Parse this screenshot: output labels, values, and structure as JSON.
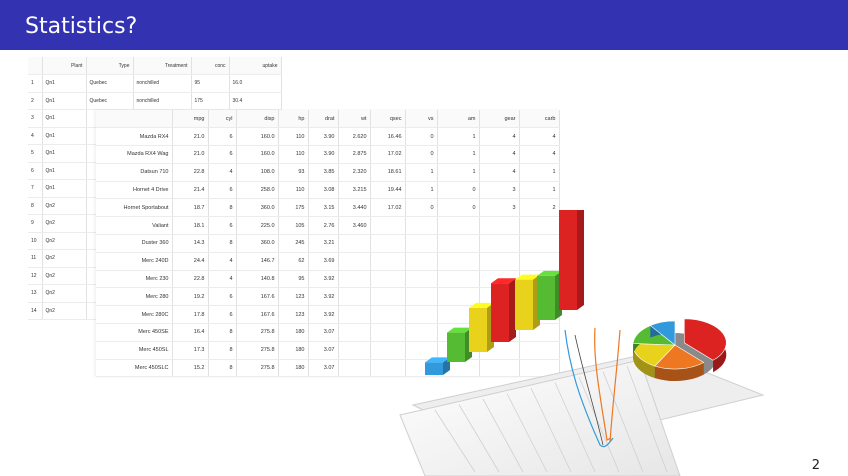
{
  "slide": {
    "title": "Statistics?",
    "page_number": "2",
    "accent_color": "#3333b2"
  },
  "table_back": {
    "headers": [
      "",
      "Plant",
      "Type",
      "Treatment",
      "conc",
      "uptake"
    ],
    "rows": [
      [
        "1",
        "Qn1",
        "Quebec",
        "nonchilled",
        "95",
        "16.0"
      ],
      [
        "2",
        "Qn1",
        "Quebec",
        "nonchilled",
        "175",
        "30.4"
      ],
      [
        "3",
        "Qn1",
        "",
        "",
        "",
        ""
      ],
      [
        "4",
        "Qn1",
        "",
        "",
        "",
        ""
      ],
      [
        "5",
        "Qn1",
        "",
        "",
        "",
        ""
      ],
      [
        "6",
        "Qn1",
        "",
        "",
        "",
        ""
      ],
      [
        "7",
        "Qn1",
        "",
        "",
        "",
        ""
      ],
      [
        "8",
        "Qn2",
        "",
        "",
        "",
        ""
      ],
      [
        "9",
        "Qn2",
        "",
        "",
        "",
        ""
      ],
      [
        "10",
        "Qn2",
        "",
        "",
        "",
        ""
      ],
      [
        "11",
        "Qn2",
        "",
        "",
        "",
        ""
      ],
      [
        "12",
        "Qn2",
        "",
        "",
        "",
        ""
      ],
      [
        "13",
        "Qn2",
        "",
        "",
        "",
        ""
      ],
      [
        "14",
        "Qn2",
        "",
        "",
        "",
        ""
      ]
    ]
  },
  "table_front": {
    "headers": [
      "",
      "mpg",
      "cyl",
      "disp",
      "hp",
      "drat",
      "wt",
      "qsec",
      "vs",
      "am",
      "gear",
      "carb"
    ],
    "rows": [
      [
        "Mazda RX4",
        "21.0",
        "6",
        "160.0",
        "110",
        "3.90",
        "2.620",
        "16.46",
        "0",
        "1",
        "4",
        "4"
      ],
      [
        "Mazda RX4 Wag",
        "21.0",
        "6",
        "160.0",
        "110",
        "3.90",
        "2.875",
        "17.02",
        "0",
        "1",
        "4",
        "4"
      ],
      [
        "Datsun 710",
        "22.8",
        "4",
        "108.0",
        "93",
        "3.85",
        "2.320",
        "18.61",
        "1",
        "1",
        "4",
        "1"
      ],
      [
        "Hornet 4 Drive",
        "21.4",
        "6",
        "258.0",
        "110",
        "3.08",
        "3.215",
        "19.44",
        "1",
        "0",
        "3",
        "1"
      ],
      [
        "Hornet Sportabout",
        "18.7",
        "8",
        "360.0",
        "175",
        "3.15",
        "3.440",
        "17.02",
        "0",
        "0",
        "3",
        "2"
      ],
      [
        "Valiant",
        "18.1",
        "6",
        "225.0",
        "105",
        "2.76",
        "3.460",
        "",
        "",
        "",
        "",
        ""
      ],
      [
        "Duster 360",
        "14.3",
        "8",
        "360.0",
        "245",
        "3.21",
        "",
        "",
        "",
        "",
        "",
        ""
      ],
      [
        "Merc 240D",
        "24.4",
        "4",
        "146.7",
        "62",
        "3.69",
        "",
        "",
        "",
        "",
        "",
        ""
      ],
      [
        "Merc 230",
        "22.8",
        "4",
        "140.8",
        "95",
        "3.92",
        "",
        "",
        "",
        "",
        "",
        ""
      ],
      [
        "Merc 280",
        "19.2",
        "6",
        "167.6",
        "123",
        "3.92",
        "",
        "",
        "",
        "",
        "",
        ""
      ],
      [
        "Merc 280C",
        "17.8",
        "6",
        "167.6",
        "123",
        "3.92",
        "",
        "",
        "",
        "",
        "",
        ""
      ],
      [
        "Merc 450SE",
        "16.4",
        "8",
        "275.8",
        "180",
        "3.07",
        "",
        "",
        "",
        "",
        "",
        ""
      ],
      [
        "Merc 450SL",
        "17.3",
        "8",
        "275.8",
        "180",
        "3.07",
        "",
        "",
        "",
        "",
        "",
        ""
      ],
      [
        "Merc 450SLC",
        "15.2",
        "8",
        "275.8",
        "180",
        "3.07",
        "",
        "",
        "",
        "",
        "",
        ""
      ]
    ]
  },
  "illustration": {
    "icon": "3d-bar-and-pie-chart-illustration",
    "bar_heights": [
      0.12,
      0.28,
      0.42,
      0.56,
      0.48,
      0.42,
      1.0
    ],
    "bar_colors": [
      "#3399dd",
      "#55bb33",
      "#e8d21c",
      "#dd2222",
      "#e8d21c",
      "#55bb33",
      "#dd2222"
    ],
    "pie_colors": [
      "#dd2222",
      "#ee7722",
      "#e8d21c",
      "#55bb33",
      "#3399dd"
    ],
    "line_colors": [
      "#3399dd",
      "#ee7722",
      "#444444"
    ]
  }
}
